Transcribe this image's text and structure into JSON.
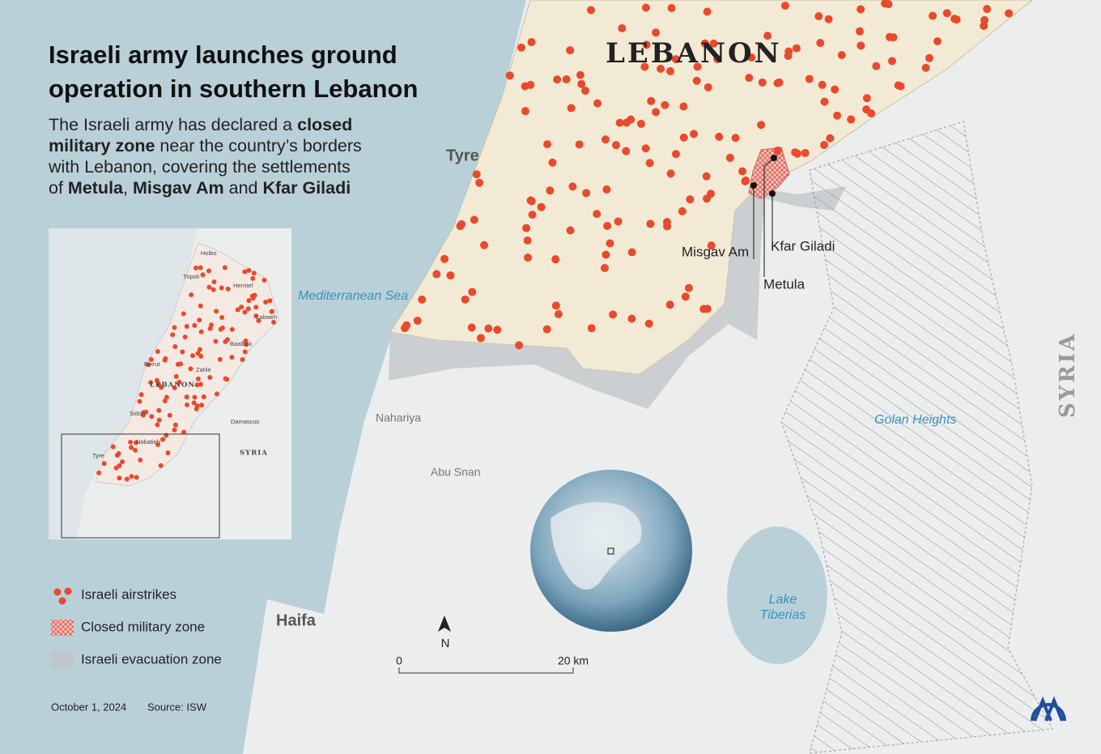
{
  "header": {
    "title": [
      "Israeli army launches ground",
      "operation in southern Lebanon"
    ],
    "subtitle": [
      [
        {
          "text": "The Israeli army has declared a "
        },
        {
          "text": "closed",
          "bold": true
        }
      ],
      [
        {
          "text": "military zone",
          "bold": true
        },
        {
          "text": " near the country’s borders"
        }
      ],
      [
        {
          "text": "with Lebanon, covering the settlements"
        }
      ],
      [
        {
          "text": "of "
        },
        {
          "text": "Metula",
          "bold": true
        },
        {
          "text": ", "
        },
        {
          "text": "Misgav Am",
          "bold": true
        },
        {
          "text": " and "
        },
        {
          "text": "Kfar Giladi",
          "bold": true
        }
      ]
    ]
  },
  "map": {
    "labels": {
      "lebanon": "LEBANON",
      "tyre": "Tyre",
      "sea": "Mediterranean Sea",
      "misgav_am": "Misgav Am",
      "kfar_giladi": "Kfar Giladi",
      "metula": "Metula",
      "nahariya": "Nahariya",
      "abu_snan": "Abu Snan",
      "golan": "Golan Heights",
      "syria": "SYRIA",
      "lake": [
        "Lake",
        "Tiberias"
      ],
      "haifa": "Haifa",
      "north": "N",
      "scale_start": "0",
      "scale_end": "20 km"
    }
  },
  "inset": {
    "labels": [
      "Holbo",
      "Tripoli",
      "Hermel",
      "Labweh",
      "Baalbek",
      "Beirut",
      "Zahle",
      "LEBANON",
      "Sidon",
      "Damascus",
      "SYRIA",
      "Nabatieh",
      "Tyre"
    ]
  },
  "legend": {
    "items": [
      "Israeli airstrikes",
      "Closed military zone",
      "Israeli evacuation zone"
    ]
  },
  "footer": {
    "date": "October 1, 2024",
    "source": "Source: ISW"
  }
}
